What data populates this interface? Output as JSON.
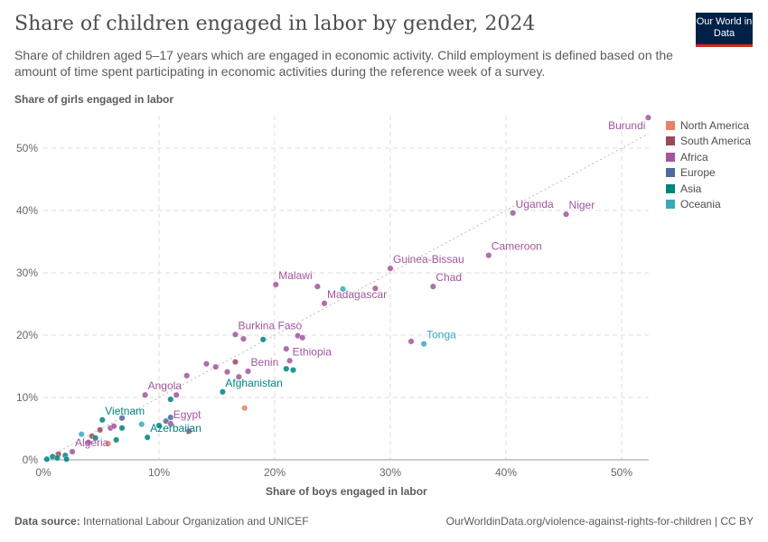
{
  "header": {
    "title": "Share of children engaged in labor by gender, 2024",
    "subtitle": "Share of children aged 5–17 years which are engaged in economic activity. Child employment is defined based on the amount of time spent participating in economic activities during the reference week of a survey.",
    "logo": "Our World in Data"
  },
  "footer": {
    "source_label": "Data source:",
    "source": "International Labour Organization and UNICEF",
    "url": "OurWorldinData.org/violence-against-rights-for-children | CC BY"
  },
  "chart_data": {
    "type": "scatter",
    "title": "Share of children engaged in labor by gender, 2024",
    "xlabel": "Share of boys engaged in labor",
    "ylabel": "Share of girls engaged in labor",
    "xlim": [
      0,
      52
    ],
    "ylim": [
      0,
      55
    ],
    "xticks": [
      "0%",
      "10%",
      "20%",
      "30%",
      "40%",
      "50%"
    ],
    "yticks": [
      "0%",
      "10%",
      "20%",
      "30%",
      "40%",
      "50%"
    ],
    "grid": true,
    "legend_position": "right",
    "reference_line": "y=x",
    "legend": [
      {
        "name": "North America",
        "color": "#e8806a"
      },
      {
        "name": "South America",
        "color": "#9a4a57"
      },
      {
        "name": "Africa",
        "color": "#a2559c"
      },
      {
        "name": "Europe",
        "color": "#4c6a9c"
      },
      {
        "name": "Asia",
        "color": "#00847e"
      },
      {
        "name": "Oceania",
        "color": "#38aaba"
      }
    ],
    "points": [
      {
        "label": "Burundi",
        "region": "Africa",
        "x": 52.3,
        "y": 54.9
      },
      {
        "label": "Uganda",
        "region": "Africa",
        "x": 40.6,
        "y": 39.6
      },
      {
        "label": "Niger",
        "region": "Africa",
        "x": 45.2,
        "y": 39.4
      },
      {
        "label": "Cameroon",
        "region": "Africa",
        "x": 38.5,
        "y": 32.8
      },
      {
        "label": "Guinea-Bissau",
        "region": "Africa",
        "x": 30.0,
        "y": 30.7
      },
      {
        "label": "Chad",
        "region": "Africa",
        "x": 33.7,
        "y": 27.8
      },
      {
        "label": "Malawi",
        "region": "Africa",
        "x": 20.1,
        "y": 28.1
      },
      {
        "label": "",
        "region": "Africa",
        "x": 23.7,
        "y": 27.8
      },
      {
        "label": "",
        "region": "Oceania",
        "x": 25.9,
        "y": 27.4
      },
      {
        "label": "",
        "region": "Africa",
        "x": 28.7,
        "y": 27.5
      },
      {
        "label": "Madagascar",
        "region": "Africa",
        "x": 24.3,
        "y": 25.1
      },
      {
        "label": "Burkina Faso",
        "region": "Africa",
        "x": 16.6,
        "y": 20.1
      },
      {
        "label": "",
        "region": "Africa",
        "x": 17.3,
        "y": 19.4
      },
      {
        "label": "",
        "region": "Asia",
        "x": 19.0,
        "y": 19.3
      },
      {
        "label": "",
        "region": "Africa",
        "x": 22.0,
        "y": 19.9
      },
      {
        "label": "",
        "region": "Africa",
        "x": 22.4,
        "y": 19.6
      },
      {
        "label": "Tonga",
        "region": "Oceania",
        "x": 32.9,
        "y": 18.6
      },
      {
        "label": "",
        "region": "Africa",
        "x": 31.8,
        "y": 19.0
      },
      {
        "label": "",
        "region": "Africa",
        "x": 21.0,
        "y": 17.8
      },
      {
        "label": "Ethiopia",
        "region": "Africa",
        "x": 21.3,
        "y": 15.9
      },
      {
        "label": "",
        "region": "Asia",
        "x": 21.0,
        "y": 14.6
      },
      {
        "label": "",
        "region": "Asia",
        "x": 21.6,
        "y": 14.4
      },
      {
        "label": "",
        "region": "South America",
        "x": 16.6,
        "y": 15.7
      },
      {
        "label": "",
        "region": "Africa",
        "x": 14.1,
        "y": 15.4
      },
      {
        "label": "",
        "region": "Africa",
        "x": 14.9,
        "y": 14.9
      },
      {
        "label": "",
        "region": "Africa",
        "x": 15.9,
        "y": 14.1
      },
      {
        "label": "Benin",
        "region": "Africa",
        "x": 17.7,
        "y": 14.2
      },
      {
        "label": "",
        "region": "Africa",
        "x": 16.9,
        "y": 13.3
      },
      {
        "label": "",
        "region": "Africa",
        "x": 12.4,
        "y": 13.5
      },
      {
        "label": "Afghanistan",
        "region": "Asia",
        "x": 15.5,
        "y": 10.9
      },
      {
        "label": "",
        "region": "North America",
        "x": 17.4,
        "y": 8.3
      },
      {
        "label": "Angola",
        "region": "Africa",
        "x": 8.8,
        "y": 10.4
      },
      {
        "label": "",
        "region": "Africa",
        "x": 11.5,
        "y": 10.4
      },
      {
        "label": "",
        "region": "Asia",
        "x": 11.0,
        "y": 9.7
      },
      {
        "label": "",
        "region": "Europe",
        "x": 11.0,
        "y": 6.8
      },
      {
        "label": "",
        "region": "Europe",
        "x": 10.6,
        "y": 6.2
      },
      {
        "label": "Egypt",
        "region": "Africa",
        "x": 11.0,
        "y": 5.8
      },
      {
        "label": "",
        "region": "Africa",
        "x": 12.6,
        "y": 4.6
      },
      {
        "label": "",
        "region": "Asia",
        "x": 10.0,
        "y": 5.5
      },
      {
        "label": "",
        "region": "Oceania",
        "x": 8.5,
        "y": 5.7
      },
      {
        "label": "Azerbaijan",
        "region": "Asia",
        "x": 9.0,
        "y": 3.6
      },
      {
        "label": "Vietnam",
        "region": "Asia",
        "x": 5.1,
        "y": 6.4
      },
      {
        "label": "",
        "region": "Europe",
        "x": 6.8,
        "y": 6.7
      },
      {
        "label": "",
        "region": "Africa",
        "x": 5.8,
        "y": 5.1
      },
      {
        "label": "",
        "region": "Africa",
        "x": 6.1,
        "y": 5.4
      },
      {
        "label": "",
        "region": "Asia",
        "x": 6.8,
        "y": 5.1
      },
      {
        "label": "",
        "region": "Asia",
        "x": 6.3,
        "y": 3.2
      },
      {
        "label": "",
        "region": "South America",
        "x": 4.9,
        "y": 4.8
      },
      {
        "label": "",
        "region": "South America",
        "x": 4.2,
        "y": 3.8
      },
      {
        "label": "",
        "region": "Asia",
        "x": 4.5,
        "y": 3.5
      },
      {
        "label": "",
        "region": "Oceania",
        "x": 3.3,
        "y": 4.1
      },
      {
        "label": "",
        "region": "Africa",
        "x": 3.9,
        "y": 2.8
      },
      {
        "label": "",
        "region": "North America",
        "x": 5.6,
        "y": 2.6
      },
      {
        "label": "Algeria",
        "region": "Africa",
        "x": 2.5,
        "y": 1.3
      },
      {
        "label": "",
        "region": "Asia",
        "x": 1.9,
        "y": 0.7
      },
      {
        "label": "",
        "region": "South America",
        "x": 1.3,
        "y": 0.9
      },
      {
        "label": "",
        "region": "Asia",
        "x": 0.8,
        "y": 0.5
      },
      {
        "label": "",
        "region": "Asia",
        "x": 0.3,
        "y": 0.1
      },
      {
        "label": "",
        "region": "Asia",
        "x": 2.0,
        "y": 0.1
      },
      {
        "label": "",
        "region": "Asia",
        "x": 1.2,
        "y": 0.3
      }
    ]
  }
}
